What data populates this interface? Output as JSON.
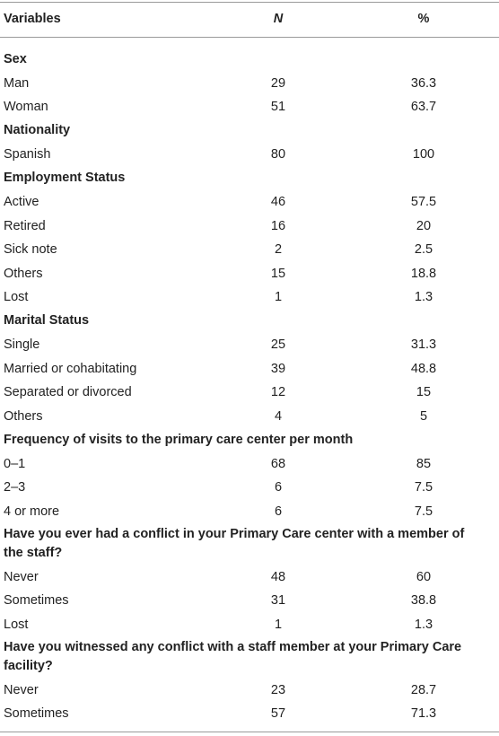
{
  "table": {
    "columns": [
      "Variables",
      "N",
      "%"
    ],
    "sections": [
      {
        "title": "Sex",
        "rows": [
          [
            "Man",
            29,
            36.3
          ],
          [
            "Woman",
            51,
            63.7
          ]
        ]
      },
      {
        "title": "Nationality",
        "rows": [
          [
            "Spanish",
            80,
            100
          ]
        ]
      },
      {
        "title": "Employment Status",
        "rows": [
          [
            "Active",
            46,
            57.5
          ],
          [
            "Retired",
            16,
            20
          ],
          [
            "Sick note",
            2,
            2.5
          ],
          [
            "Others",
            15,
            18.8
          ],
          [
            "Lost",
            1,
            1.3
          ]
        ]
      },
      {
        "title": "Marital Status",
        "rows": [
          [
            "Single",
            25,
            31.3
          ],
          [
            "Married or cohabitating",
            39,
            48.8
          ],
          [
            "Separated or divorced",
            12,
            15
          ],
          [
            "Others",
            4,
            5
          ]
        ]
      },
      {
        "title": "Frequency of visits to the primary care center per month",
        "rows": [
          [
            "0–1",
            68,
            85
          ],
          [
            "2–3",
            6,
            7.5
          ],
          [
            "4 or more",
            6,
            7.5
          ]
        ]
      },
      {
        "title": "Have you ever had a conflict in your Primary Care center with a member of the staff?",
        "rows": [
          [
            "Never",
            48,
            60
          ],
          [
            "Sometimes",
            31,
            38.8
          ],
          [
            "Lost",
            1,
            1.3
          ]
        ]
      },
      {
        "title": "Have you witnessed any conflict with a staff member at your Primary Care facility?",
        "rows": [
          [
            "Never",
            23,
            28.7
          ],
          [
            "Sometimes",
            57,
            71.3
          ]
        ]
      }
    ]
  }
}
